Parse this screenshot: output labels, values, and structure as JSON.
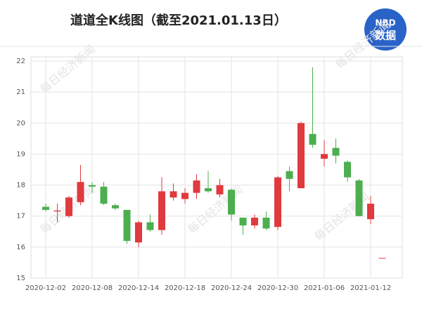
{
  "logo": {
    "top": "NBD",
    "bottom": "数据"
  },
  "watermark": "每日经济新闻",
  "chart_data": {
    "type": "candlestick",
    "title": "道道全K线图（截至2021.01.13日）",
    "categories": [
      "2020-12-02",
      null,
      null,
      null,
      "2020-12-08",
      null,
      null,
      null,
      "2020-12-14",
      null,
      null,
      null,
      "2020-12-18",
      null,
      null,
      null,
      "2020-12-24",
      null,
      null,
      null,
      "2020-12-30",
      null,
      null,
      null,
      "2021-01-06",
      null,
      null,
      null,
      "2021-01-12",
      null
    ],
    "open": [
      17.3,
      17.15,
      17.0,
      17.45,
      18.0,
      17.95,
      17.35,
      17.2,
      16.15,
      16.8,
      16.55,
      17.6,
      17.55,
      17.75,
      17.9,
      17.7,
      17.85,
      16.95,
      16.7,
      16.95,
      16.65,
      18.45,
      17.9,
      19.65,
      18.85,
      19.2,
      18.75,
      18.15,
      16.9,
      15.65
    ],
    "high": [
      17.4,
      17.4,
      17.65,
      18.65,
      18.1,
      18.1,
      17.4,
      17.2,
      16.85,
      17.05,
      18.25,
      18.05,
      17.9,
      18.35,
      18.45,
      18.2,
      17.9,
      16.95,
      17.05,
      17.15,
      18.3,
      18.6,
      20.05,
      21.8,
      19.45,
      19.5,
      18.8,
      18.2,
      17.65,
      15.65
    ],
    "low": [
      17.15,
      16.8,
      16.95,
      17.35,
      17.75,
      17.35,
      17.2,
      16.1,
      16.0,
      16.5,
      16.4,
      17.5,
      17.4,
      17.55,
      17.75,
      17.6,
      16.85,
      16.4,
      16.6,
      16.55,
      16.55,
      17.8,
      17.9,
      19.2,
      18.6,
      18.7,
      18.1,
      17.0,
      16.75,
      15.65
    ],
    "close": [
      17.2,
      17.18,
      17.6,
      18.1,
      17.95,
      17.4,
      17.25,
      16.2,
      16.8,
      16.55,
      17.8,
      17.8,
      17.75,
      18.15,
      17.8,
      18.0,
      17.05,
      16.7,
      16.95,
      16.6,
      18.25,
      18.2,
      20.0,
      19.3,
      19.0,
      18.95,
      18.25,
      17.0,
      17.4,
      15.65
    ],
    "up_color": "#e0393e",
    "down_color": "#4cae4f",
    "ylim": [
      15,
      22
    ],
    "yticks": [
      15,
      16,
      17,
      18,
      19,
      20,
      21,
      22
    ],
    "grid": true
  }
}
